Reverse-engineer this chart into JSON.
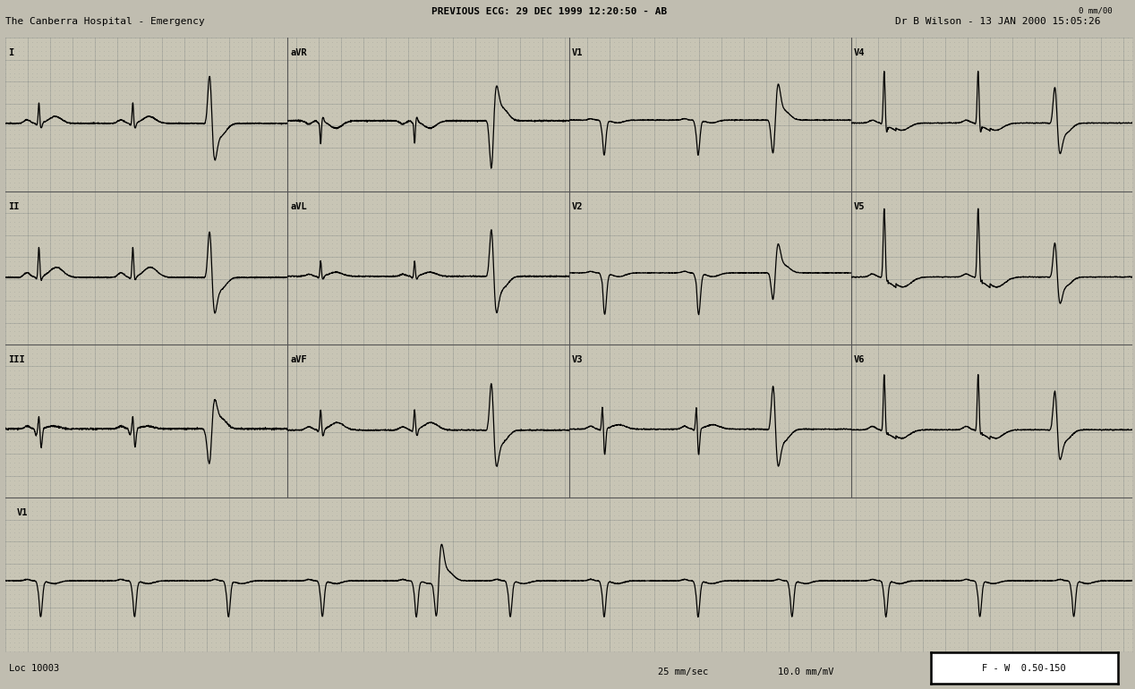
{
  "paper_color": "#c8c8c8",
  "grid_dot_color": "#888888",
  "line_color": "#000000",
  "title_line1": "PREVIOUS ECG: 29 DEC 1999 12:20:50 - AB",
  "title_line2": "The Canberra Hospital - Emergency",
  "title_right": "Dr B Wilson - 13 JAN 2000 15:05:26",
  "title_top_right": "0 mm/00",
  "loc_text": "Loc 10003",
  "speed_text": "25 mm/sec",
  "gain_text": "10.0 mm/mV",
  "filter_text": "F - W  0.50-150",
  "hr": 72,
  "leads_top": [
    "I",
    "aVR",
    "V1",
    "V4"
  ],
  "leads_mid1": [
    "II",
    "aVL",
    "V2",
    "V5"
  ],
  "leads_mid2": [
    "III",
    "aVF",
    "V3",
    "V6"
  ],
  "leads_bot": [
    "V1"
  ],
  "col_separator_color": "#444444",
  "row_separator_color": "#444444"
}
